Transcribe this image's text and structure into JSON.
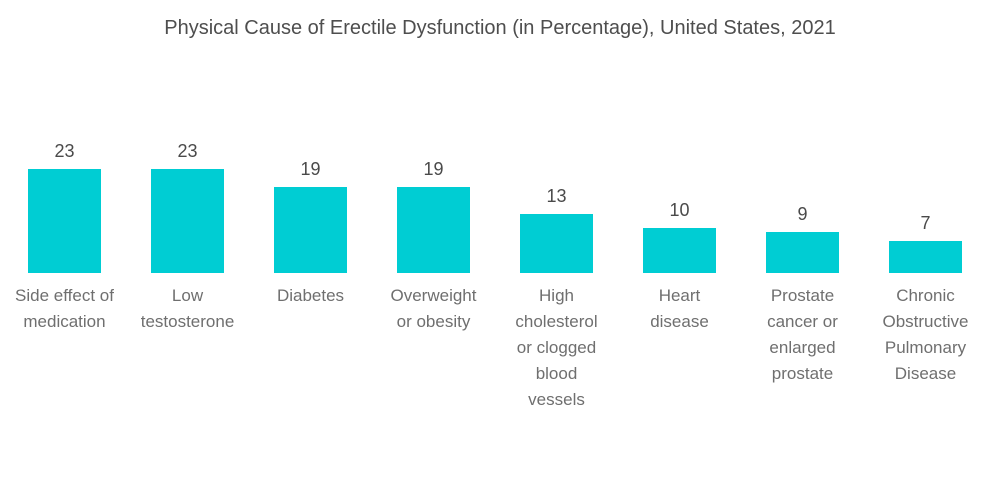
{
  "title": "Physical Cause of Erectile Dysfunction (in Percentage), United States, 2021",
  "colors": {
    "bar": "#00CDD3",
    "title_text": "#4e4e4e",
    "value_text": "#4a4a4a",
    "category_text": "#6f6f6f",
    "background": "#ffffff"
  },
  "chart_data": {
    "type": "bar",
    "title": "Physical Cause of Erectile Dysfunction (in Percentage), United States, 2021",
    "categories": [
      "Side effect of medication",
      "Low testosterone",
      "Diabetes",
      "Overweight or obesity",
      "High cholesterol or clogged blood vessels",
      "Heart disease",
      "Prostate cancer or enlarged prostate",
      "Chronic Obstructive Pulmonary Disease"
    ],
    "category_lines": [
      [
        "Side effect of",
        "medication"
      ],
      [
        "Low",
        "testosterone"
      ],
      [
        "Diabetes"
      ],
      [
        "Overweight",
        "or obesity"
      ],
      [
        "High",
        "cholesterol",
        "or clogged",
        "blood",
        "vessels"
      ],
      [
        "Heart",
        "disease"
      ],
      [
        "Prostate",
        "cancer or",
        "enlarged",
        "prostate"
      ],
      [
        "Chronic",
        "Obstructive",
        "Pulmonary",
        "Disease"
      ]
    ],
    "values": [
      23,
      23,
      19,
      19,
      13,
      10,
      9,
      7
    ],
    "value_labels": [
      "23",
      "23",
      "19",
      "19",
      "13",
      "10",
      "9",
      "7"
    ],
    "xlabel": "",
    "ylabel": "",
    "ylim": [
      0,
      25
    ],
    "grid": false,
    "legend": "none",
    "axes_shown": false,
    "value_label_position": "above-bar",
    "orientation": "vertical"
  }
}
